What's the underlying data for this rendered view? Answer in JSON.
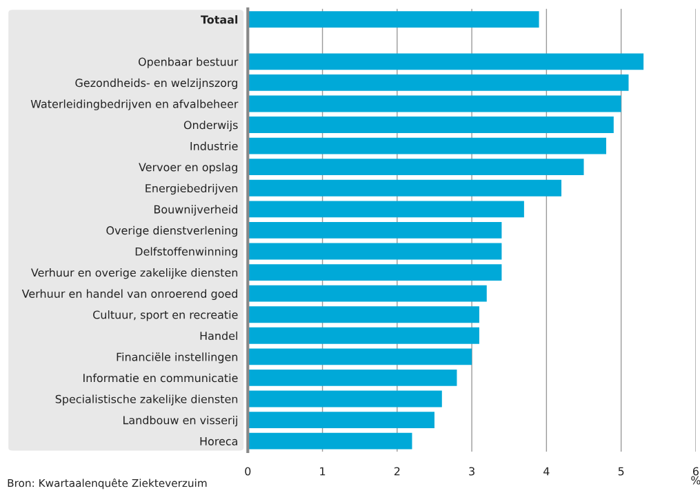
{
  "chart_data": {
    "type": "bar",
    "orientation": "horizontal",
    "categories": [
      "Totaal",
      null,
      "Openbaar bestuur",
      "Gezondheids- en welzijnszorg",
      "Waterleidingbedrijven en afvalbeheer",
      "Onderwijs",
      "Industrie",
      "Vervoer en opslag",
      "Energiebedrijven",
      "Bouwnijverheid",
      "Overige dienstverlening",
      "Delfstoffenwinning",
      "Verhuur en overige zakelijke diensten",
      "Verhuur en handel van onroerend goed",
      "Cultuur, sport en recreatie",
      "Handel",
      "Financiële instellingen",
      "Informatie en communicatie",
      "Specialistische zakelijke diensten",
      "Landbouw en visserij",
      "Horeca"
    ],
    "values": [
      3.9,
      null,
      5.3,
      5.1,
      5.0,
      4.9,
      4.8,
      4.5,
      4.2,
      3.7,
      3.4,
      3.4,
      3.4,
      3.2,
      3.1,
      3.1,
      3.0,
      2.8,
      2.6,
      2.5,
      2.2
    ],
    "color": "#00a9d8",
    "xlabel": "%",
    "xlim": [
      0,
      6
    ],
    "xticks": [
      0,
      1,
      2,
      3,
      4,
      5,
      6
    ],
    "grid": "x",
    "annotations": [
      "Bron: Kwartaalenquête Ziekteverzuim"
    ]
  }
}
